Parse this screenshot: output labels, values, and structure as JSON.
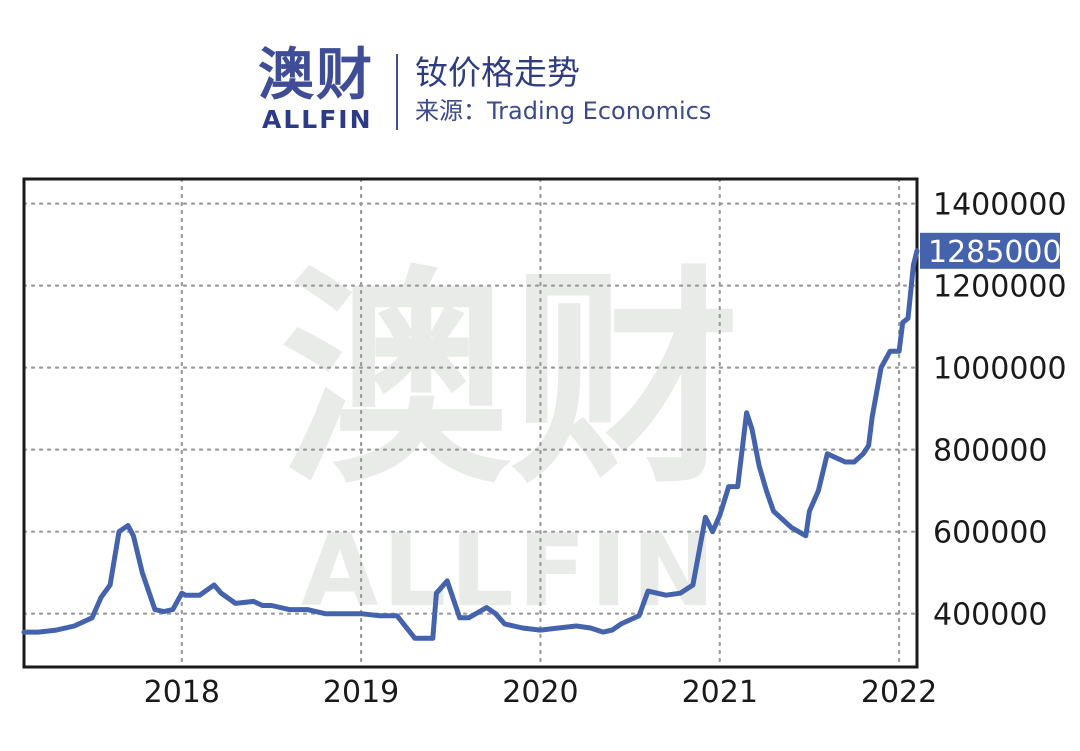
{
  "header": {
    "logo_cn": "澳财",
    "logo_en": "ALLFIN",
    "title": "钕价格走势",
    "source": "来源：Trading Economics"
  },
  "watermark": {
    "cn": "澳财",
    "en": "ALLFIN"
  },
  "colors": {
    "line": "#4563ad",
    "brand": "#3f4d97",
    "grid": "#9a9a9a",
    "label_bg": "#4563ad"
  },
  "chart_data": {
    "type": "line",
    "title": "钕价格走势",
    "xlabel": "",
    "ylabel": "",
    "x_ticks": [
      "2018",
      "2019",
      "2020",
      "2021",
      "2022"
    ],
    "x_tick_values": [
      2018.0,
      2019.0,
      2020.0,
      2021.0,
      2022.0
    ],
    "y_ticks": [
      "400000",
      "600000",
      "800000",
      "1000000",
      "1200000",
      "1400000"
    ],
    "y_tick_values": [
      400000,
      600000,
      800000,
      1000000,
      1200000,
      1400000
    ],
    "xlim": [
      2017.12,
      2022.1
    ],
    "ylim": [
      270000,
      1460000
    ],
    "grid": true,
    "last_value_label": "1285000",
    "series": [
      {
        "x": [
          2017.12,
          2017.2,
          2017.3,
          2017.4,
          2017.5,
          2017.55,
          2017.6,
          2017.65,
          2017.7,
          2017.73,
          2017.78,
          2017.85,
          2017.9,
          2017.95,
          2018.0,
          2018.02,
          2018.05,
          2018.1,
          2018.18,
          2018.22,
          2018.3,
          2018.4,
          2018.45,
          2018.5,
          2018.6,
          2018.7,
          2018.8,
          2018.9,
          2019.0,
          2019.1,
          2019.2,
          2019.3,
          2019.33,
          2019.4,
          2019.42,
          2019.48,
          2019.55,
          2019.6,
          2019.7,
          2019.75,
          2019.8,
          2019.9,
          2020.0,
          2020.1,
          2020.2,
          2020.28,
          2020.35,
          2020.4,
          2020.45,
          2020.55,
          2020.6,
          2020.7,
          2020.78,
          2020.85,
          2020.88,
          2020.92,
          2020.96,
          2021.0,
          2021.05,
          2021.1,
          2021.15,
          2021.18,
          2021.22,
          2021.26,
          2021.3,
          2021.4,
          2021.48,
          2021.5,
          2021.55,
          2021.6,
          2021.7,
          2021.75,
          2021.8,
          2021.83,
          2021.85,
          2021.9,
          2021.95,
          2021.98,
          2022.0,
          2022.02,
          2022.05,
          2022.08,
          2022.1
        ],
        "y": [
          355000,
          355000,
          360000,
          370000,
          390000,
          440000,
          470000,
          600000,
          615000,
          590000,
          500000,
          410000,
          405000,
          410000,
          450000,
          445000,
          445000,
          445000,
          470000,
          450000,
          425000,
          430000,
          420000,
          420000,
          410000,
          410000,
          400000,
          400000,
          400000,
          395000,
          395000,
          340000,
          340000,
          340000,
          450000,
          480000,
          390000,
          390000,
          415000,
          400000,
          375000,
          365000,
          360000,
          365000,
          370000,
          365000,
          355000,
          360000,
          375000,
          395000,
          455000,
          445000,
          450000,
          470000,
          540000,
          635000,
          600000,
          640000,
          710000,
          710000,
          890000,
          850000,
          760000,
          700000,
          650000,
          610000,
          590000,
          650000,
          700000,
          790000,
          770000,
          770000,
          790000,
          810000,
          880000,
          1000000,
          1040000,
          1040000,
          1040000,
          1110000,
          1120000,
          1250000,
          1285000
        ]
      }
    ]
  }
}
